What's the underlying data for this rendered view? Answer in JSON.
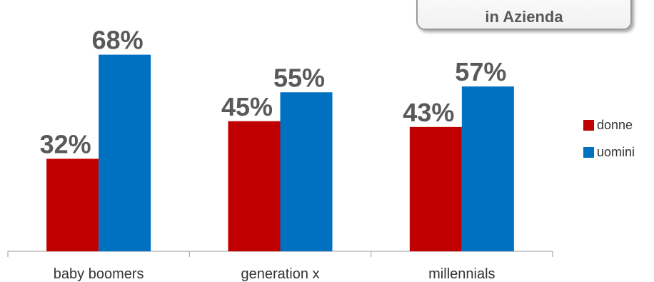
{
  "callout": {
    "text": "in Azienda"
  },
  "chart_data": {
    "type": "bar",
    "categories": [
      "baby boomers",
      "generation x",
      "millennials"
    ],
    "series": [
      {
        "name": "donne",
        "values": [
          32,
          45,
          43
        ],
        "labels": [
          "32%",
          "45%",
          "43%"
        ],
        "color": "#C00000"
      },
      {
        "name": "uomini",
        "values": [
          68,
          55,
          57
        ],
        "labels": [
          "68%",
          "55%",
          "57%"
        ],
        "color": "#0070C0"
      }
    ],
    "ylim": [
      0,
      80
    ],
    "grid": false,
    "legend_position": "right",
    "title": "",
    "xlabel": "",
    "ylabel": ""
  }
}
